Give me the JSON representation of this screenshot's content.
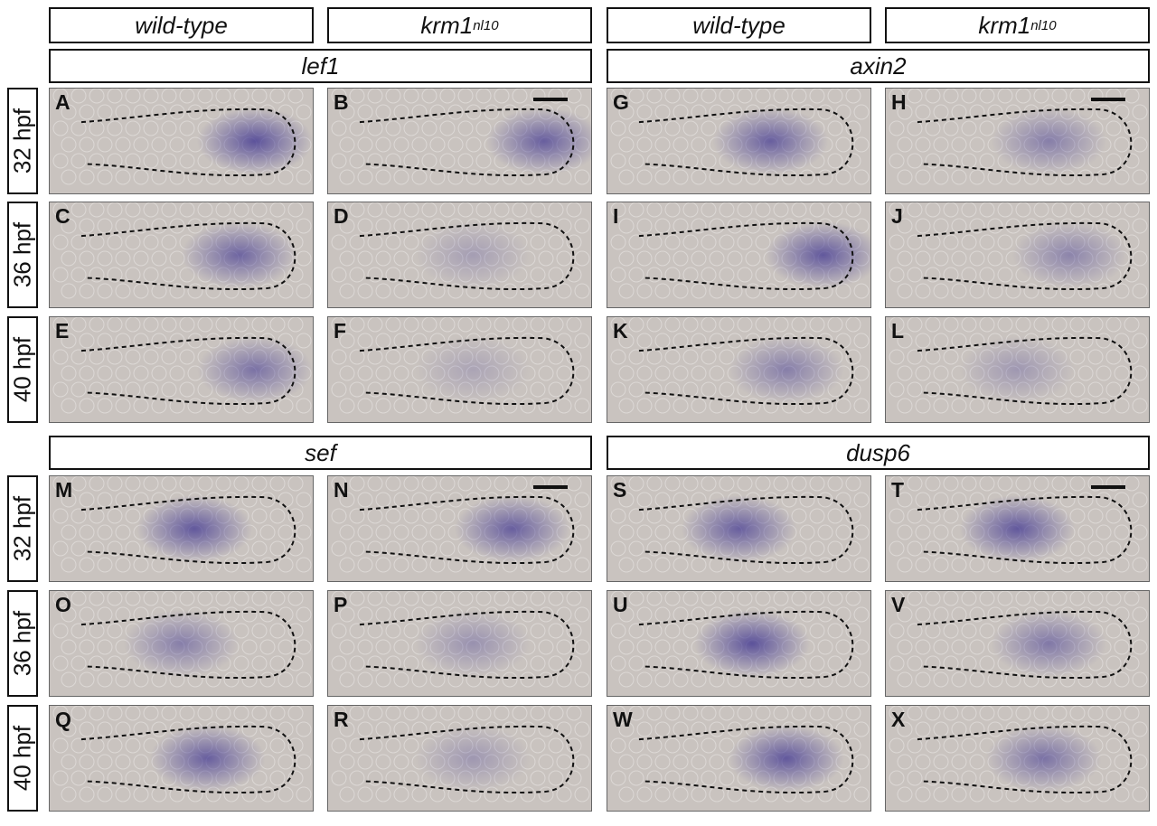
{
  "genotype_headers": [
    {
      "genotype": "wild-type",
      "superscript": ""
    },
    {
      "genotype": "krm1",
      "superscript": "nl10"
    },
    {
      "genotype": "wild-type",
      "superscript": ""
    },
    {
      "genotype": "krm1",
      "superscript": "nl10"
    }
  ],
  "gene_headers": [
    "lef1",
    "axin2",
    "sef",
    "dusp6"
  ],
  "time_labels": [
    "32 hpf",
    "36 hpf",
    "40 hpf",
    "32 hpf",
    "36 hpf",
    "40 hpf"
  ],
  "panel_letters": [
    "A",
    "B",
    "G",
    "H",
    "C",
    "D",
    "I",
    "J",
    "E",
    "F",
    "K",
    "L",
    "M",
    "N",
    "S",
    "T",
    "O",
    "P",
    "U",
    "V",
    "Q",
    "R",
    "W",
    "X"
  ],
  "colors": {
    "background_tissue": "#c9c3bf",
    "stain": "#3a2f8f",
    "outline": "#111111"
  }
}
